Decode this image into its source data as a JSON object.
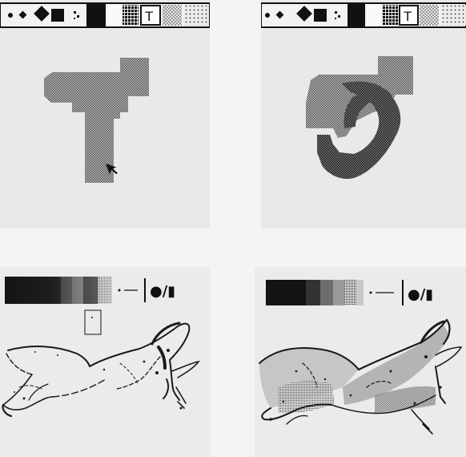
{
  "screens": [
    {
      "id": "top-left",
      "toolbar": {
        "tool_text": "T"
      }
    },
    {
      "id": "top-right",
      "toolbar": {
        "tool_text": "T"
      }
    },
    {
      "id": "bottom-left",
      "palette": {
        "glyphs": "●/▮"
      }
    },
    {
      "id": "bottom-right",
      "palette": {
        "glyphs": "●/▮"
      }
    }
  ],
  "colors": {
    "background": "#f4f4f2",
    "screen": "#e9e9e7",
    "ink": "#111111",
    "gray_blob": "#8f8f8f",
    "dark_blob": "#3a3a3a"
  },
  "icons": [
    "dot-icon",
    "small-diamond-icon",
    "diamond-icon",
    "square-icon",
    "dither-icon",
    "solid-fill-swatch",
    "white-swatch",
    "dark-dither-swatch",
    "text-tool-icon",
    "light-checker-swatch",
    "dot-pattern-swatch",
    "cursor-arrow-icon"
  ]
}
